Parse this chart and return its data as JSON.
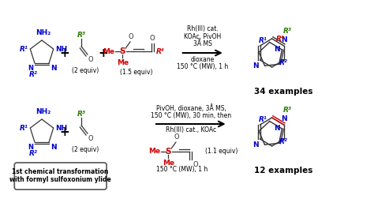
{
  "background_color": "#ffffff",
  "figsize": [
    4.74,
    2.52
  ],
  "dpi": 100,
  "colors": {
    "blue": "#0000cc",
    "green": "#2d7a00",
    "red": "#cc0000",
    "black": "#000000",
    "dark_red": "#cc0000",
    "gray": "#333333"
  },
  "top_conditions": [
    "Rh(III) cat.",
    "KOAc, PivOH",
    "3Å MS",
    "dioxane",
    "150 °C (MW), 1 h"
  ],
  "top_result": "34 examples",
  "bot_conditions_above": [
    "PivOH, dioxane, 3Å MS,",
    "150 °C (MW), 30 min, then"
  ],
  "bot_conditions_below": [
    "Rh(III) cat., KOAc"
  ],
  "bot_equiv": "(1.1 equiv)",
  "bot_temp": "150 °C (MW), 1 h",
  "bot_result": "12 examples",
  "box_label_1": "1st chemical transformation",
  "box_label_2": "with formyl sulfoxonium ylide",
  "equiv_2": "(2 equiv)",
  "equiv_15": "(1.5 equiv)"
}
